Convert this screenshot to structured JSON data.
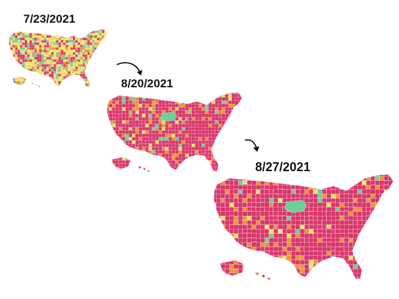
{
  "snapshots": [
    {
      "date": "7/23/2021",
      "palette": {
        "yellow": 0.46,
        "orange": 0.14,
        "red": 0.26,
        "green": 0.14
      }
    },
    {
      "date": "8/20/2021",
      "palette": {
        "yellow": 0.06,
        "orange": 0.16,
        "red": 0.72,
        "green": 0.06
      }
    },
    {
      "date": "8/27/2021",
      "palette": {
        "yellow": 0.04,
        "orange": 0.14,
        "red": 0.78,
        "green": 0.04
      }
    }
  ],
  "colors": {
    "red": "#d9366b",
    "orange": "#e8973e",
    "yellow": "#ece66a",
    "green": "#6fcf9a",
    "border": "#ffffff",
    "arrow": "#111111",
    "label": "#111111"
  },
  "icons": [
    "us-county-map",
    "curved-arrow-icon"
  ]
}
